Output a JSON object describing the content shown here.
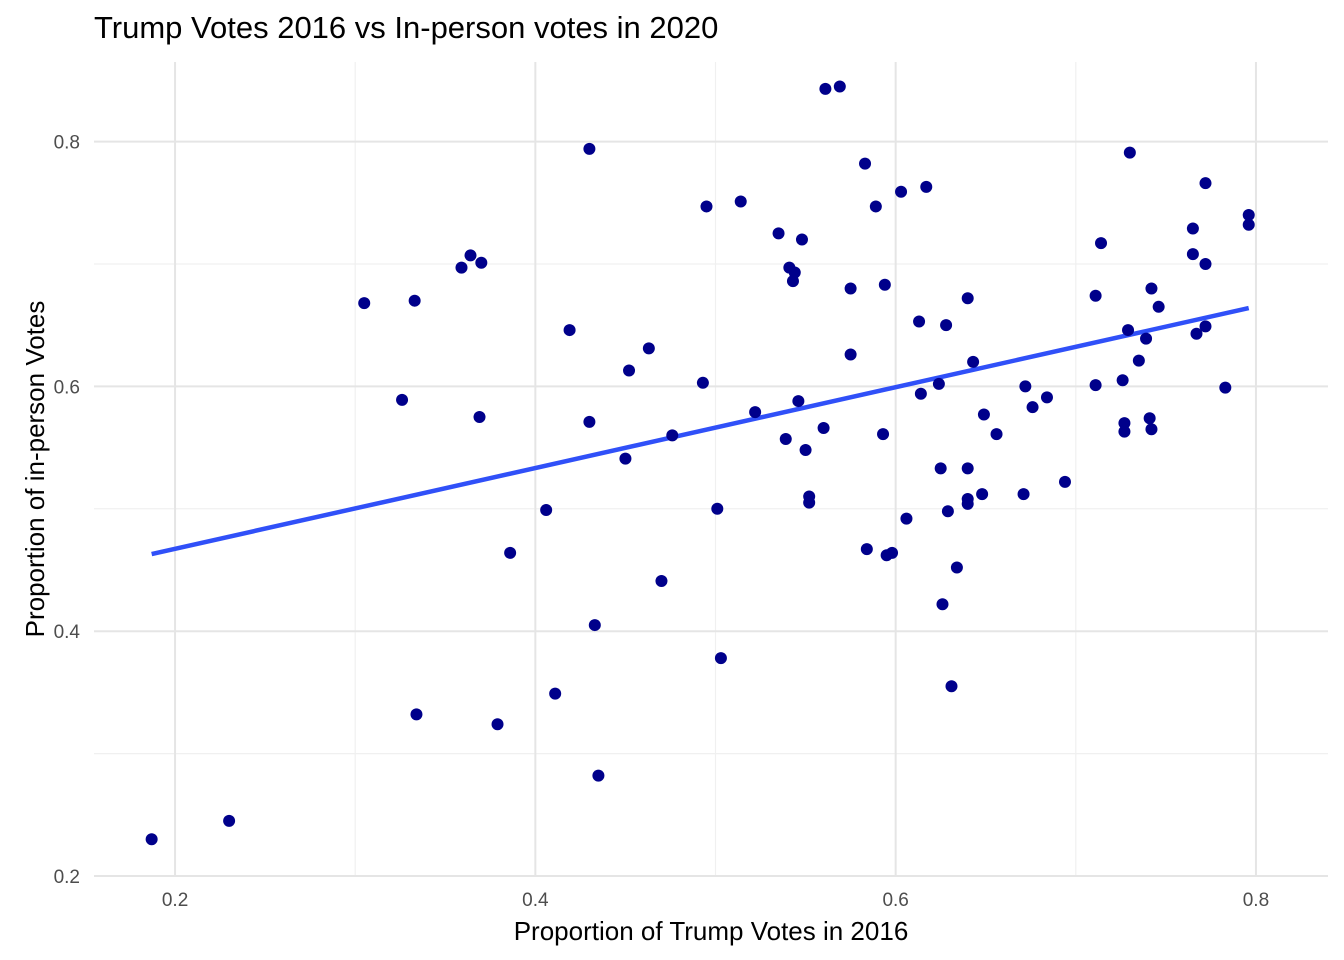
{
  "chart_data": {
    "type": "scatter",
    "title": "Trump Votes 2016 vs In-person votes in 2020",
    "xlabel": "Proportion of Trump Votes in 2016",
    "ylabel": "Proportion of in-person Votes",
    "xlim": [
      0.155,
      0.84
    ],
    "ylim": [
      0.2,
      0.865
    ],
    "x_ticks": [
      0.2,
      0.4,
      0.6,
      0.8
    ],
    "y_ticks": [
      0.2,
      0.4,
      0.6,
      0.8
    ],
    "x_tick_labels": [
      "0.2",
      "0.4",
      "0.6",
      "0.8"
    ],
    "y_tick_labels": [
      "0.2",
      "0.4",
      "0.6",
      "0.8"
    ],
    "x_minor": [
      0.3,
      0.5,
      0.7
    ],
    "y_minor": [
      0.3,
      0.5,
      0.7
    ],
    "grid": true,
    "legend": "none",
    "point_color": "#00008B",
    "trend_line": {
      "x": [
        0.187,
        0.796
      ],
      "y": [
        0.463,
        0.664
      ],
      "color": "#3050F8"
    },
    "points": [
      {
        "x": 0.187,
        "y": 0.23
      },
      {
        "x": 0.23,
        "y": 0.245
      },
      {
        "x": 0.305,
        "y": 0.668
      },
      {
        "x": 0.326,
        "y": 0.589
      },
      {
        "x": 0.333,
        "y": 0.67
      },
      {
        "x": 0.334,
        "y": 0.332
      },
      {
        "x": 0.359,
        "y": 0.697
      },
      {
        "x": 0.364,
        "y": 0.707
      },
      {
        "x": 0.37,
        "y": 0.701
      },
      {
        "x": 0.369,
        "y": 0.575
      },
      {
        "x": 0.379,
        "y": 0.324
      },
      {
        "x": 0.386,
        "y": 0.464
      },
      {
        "x": 0.406,
        "y": 0.499
      },
      {
        "x": 0.411,
        "y": 0.349
      },
      {
        "x": 0.419,
        "y": 0.646
      },
      {
        "x": 0.43,
        "y": 0.794
      },
      {
        "x": 0.43,
        "y": 0.571
      },
      {
        "x": 0.433,
        "y": 0.405
      },
      {
        "x": 0.435,
        "y": 0.282
      },
      {
        "x": 0.45,
        "y": 0.541
      },
      {
        "x": 0.452,
        "y": 0.613
      },
      {
        "x": 0.463,
        "y": 0.631
      },
      {
        "x": 0.47,
        "y": 0.441
      },
      {
        "x": 0.476,
        "y": 0.56
      },
      {
        "x": 0.493,
        "y": 0.603
      },
      {
        "x": 0.495,
        "y": 0.747
      },
      {
        "x": 0.501,
        "y": 0.5
      },
      {
        "x": 0.503,
        "y": 0.378
      },
      {
        "x": 0.514,
        "y": 0.751
      },
      {
        "x": 0.522,
        "y": 0.579
      },
      {
        "x": 0.535,
        "y": 0.725
      },
      {
        "x": 0.539,
        "y": 0.557
      },
      {
        "x": 0.541,
        "y": 0.697
      },
      {
        "x": 0.543,
        "y": 0.686
      },
      {
        "x": 0.544,
        "y": 0.693
      },
      {
        "x": 0.546,
        "y": 0.588
      },
      {
        "x": 0.548,
        "y": 0.72
      },
      {
        "x": 0.55,
        "y": 0.548
      },
      {
        "x": 0.552,
        "y": 0.51
      },
      {
        "x": 0.552,
        "y": 0.505
      },
      {
        "x": 0.56,
        "y": 0.566
      },
      {
        "x": 0.561,
        "y": 0.843
      },
      {
        "x": 0.569,
        "y": 0.845
      },
      {
        "x": 0.575,
        "y": 0.68
      },
      {
        "x": 0.575,
        "y": 0.626
      },
      {
        "x": 0.583,
        "y": 0.782
      },
      {
        "x": 0.584,
        "y": 0.467
      },
      {
        "x": 0.589,
        "y": 0.747
      },
      {
        "x": 0.593,
        "y": 0.561
      },
      {
        "x": 0.594,
        "y": 0.683
      },
      {
        "x": 0.595,
        "y": 0.462
      },
      {
        "x": 0.598,
        "y": 0.464
      },
      {
        "x": 0.603,
        "y": 0.759
      },
      {
        "x": 0.606,
        "y": 0.492
      },
      {
        "x": 0.613,
        "y": 0.653
      },
      {
        "x": 0.614,
        "y": 0.594
      },
      {
        "x": 0.617,
        "y": 0.763
      },
      {
        "x": 0.624,
        "y": 0.602
      },
      {
        "x": 0.625,
        "y": 0.533
      },
      {
        "x": 0.626,
        "y": 0.422
      },
      {
        "x": 0.628,
        "y": 0.65
      },
      {
        "x": 0.629,
        "y": 0.498
      },
      {
        "x": 0.631,
        "y": 0.355
      },
      {
        "x": 0.634,
        "y": 0.452
      },
      {
        "x": 0.64,
        "y": 0.533
      },
      {
        "x": 0.64,
        "y": 0.508
      },
      {
        "x": 0.64,
        "y": 0.504
      },
      {
        "x": 0.64,
        "y": 0.672
      },
      {
        "x": 0.643,
        "y": 0.62
      },
      {
        "x": 0.648,
        "y": 0.512
      },
      {
        "x": 0.649,
        "y": 0.577
      },
      {
        "x": 0.656,
        "y": 0.561
      },
      {
        "x": 0.671,
        "y": 0.512
      },
      {
        "x": 0.672,
        "y": 0.6
      },
      {
        "x": 0.676,
        "y": 0.583
      },
      {
        "x": 0.684,
        "y": 0.591
      },
      {
        "x": 0.694,
        "y": 0.522
      },
      {
        "x": 0.711,
        "y": 0.601
      },
      {
        "x": 0.711,
        "y": 0.674
      },
      {
        "x": 0.714,
        "y": 0.717
      },
      {
        "x": 0.726,
        "y": 0.605
      },
      {
        "x": 0.727,
        "y": 0.563
      },
      {
        "x": 0.727,
        "y": 0.57
      },
      {
        "x": 0.729,
        "y": 0.646
      },
      {
        "x": 0.73,
        "y": 0.791
      },
      {
        "x": 0.735,
        "y": 0.621
      },
      {
        "x": 0.739,
        "y": 0.639
      },
      {
        "x": 0.741,
        "y": 0.574
      },
      {
        "x": 0.742,
        "y": 0.68
      },
      {
        "x": 0.742,
        "y": 0.565
      },
      {
        "x": 0.746,
        "y": 0.665
      },
      {
        "x": 0.765,
        "y": 0.729
      },
      {
        "x": 0.765,
        "y": 0.708
      },
      {
        "x": 0.767,
        "y": 0.643
      },
      {
        "x": 0.772,
        "y": 0.766
      },
      {
        "x": 0.772,
        "y": 0.7
      },
      {
        "x": 0.772,
        "y": 0.649
      },
      {
        "x": 0.783,
        "y": 0.599
      },
      {
        "x": 0.796,
        "y": 0.74
      },
      {
        "x": 0.796,
        "y": 0.732
      }
    ]
  }
}
